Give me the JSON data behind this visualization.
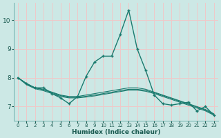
{
  "xlabel": "Humidex (Indice chaleur)",
  "bg_color": "#cce8e5",
  "grid_color": "#f0c8c8",
  "line_color": "#1a7a6e",
  "xlim": [
    -0.5,
    23.5
  ],
  "ylim": [
    6.5,
    10.6
  ],
  "yticks": [
    7,
    8,
    9,
    10
  ],
  "xticks": [
    0,
    1,
    2,
    3,
    4,
    5,
    6,
    7,
    8,
    9,
    10,
    11,
    12,
    13,
    14,
    15,
    16,
    17,
    18,
    19,
    20,
    21,
    22,
    23
  ],
  "series_main": {
    "x": [
      0,
      1,
      2,
      3,
      4,
      5,
      6,
      7,
      8,
      9,
      10,
      11,
      12,
      13,
      14,
      15,
      16,
      17,
      18,
      19,
      20,
      21,
      22,
      23
    ],
    "y": [
      8.0,
      7.8,
      7.65,
      7.65,
      7.45,
      7.3,
      7.1,
      7.35,
      8.05,
      8.55,
      8.75,
      8.75,
      9.5,
      10.35,
      9.0,
      8.25,
      7.4,
      7.1,
      7.05,
      7.1,
      7.15,
      6.85,
      7.0,
      6.7
    ]
  },
  "series_trend1": {
    "x": [
      0,
      1,
      2,
      3,
      4,
      5,
      6,
      7,
      8,
      9,
      10,
      11,
      12,
      13,
      14,
      15,
      16,
      17,
      18,
      19,
      20,
      21,
      22,
      23
    ],
    "y": [
      8.0,
      7.8,
      7.65,
      7.6,
      7.5,
      7.4,
      7.35,
      7.35,
      7.4,
      7.45,
      7.5,
      7.55,
      7.6,
      7.65,
      7.65,
      7.6,
      7.5,
      7.4,
      7.3,
      7.2,
      7.1,
      7.0,
      6.9,
      6.75
    ]
  },
  "series_trend2": {
    "x": [
      0,
      1,
      2,
      3,
      4,
      5,
      6,
      7,
      8,
      9,
      10,
      11,
      12,
      13,
      14,
      15,
      16,
      17,
      18,
      19,
      20,
      21,
      22,
      23
    ],
    "y": [
      8.0,
      7.78,
      7.65,
      7.58,
      7.48,
      7.38,
      7.32,
      7.32,
      7.36,
      7.4,
      7.45,
      7.5,
      7.55,
      7.6,
      7.6,
      7.56,
      7.48,
      7.38,
      7.28,
      7.18,
      7.08,
      6.98,
      6.88,
      6.72
    ]
  },
  "series_trend3": {
    "x": [
      0,
      1,
      2,
      3,
      4,
      5,
      6,
      7,
      8,
      9,
      10,
      11,
      12,
      13,
      14,
      15,
      16,
      17,
      18,
      19,
      20,
      21,
      22,
      23
    ],
    "y": [
      8.0,
      7.76,
      7.62,
      7.55,
      7.45,
      7.35,
      7.3,
      7.3,
      7.33,
      7.37,
      7.42,
      7.47,
      7.52,
      7.57,
      7.57,
      7.53,
      7.45,
      7.35,
      7.25,
      7.15,
      7.05,
      6.95,
      6.85,
      6.7
    ]
  }
}
